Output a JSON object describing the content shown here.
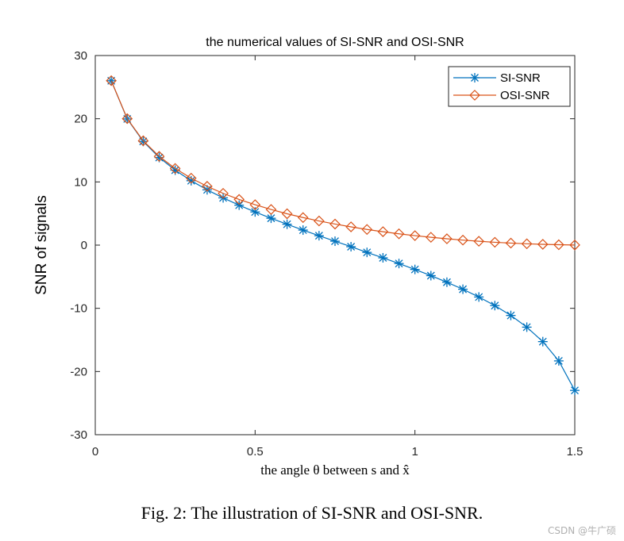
{
  "chart_data": {
    "type": "line",
    "title": "the numerical values of SI-SNR and OSI-SNR",
    "xlabel": "the angle θ between s and x̂",
    "ylabel": "SNR of signals",
    "xlim": [
      0,
      1.5
    ],
    "ylim": [
      -30,
      30
    ],
    "xticks": [
      0,
      0.5,
      1,
      1.5
    ],
    "xtick_labels": [
      "0",
      "0.5",
      "1",
      "1.5"
    ],
    "yticks": [
      -30,
      -20,
      -10,
      0,
      10,
      20,
      30
    ],
    "ytick_labels": [
      "-30",
      "-20",
      "-10",
      "0",
      "10",
      "20",
      "30"
    ],
    "grid": false,
    "legend_position": "top-right",
    "x": [
      0.05,
      0.1,
      0.15,
      0.2,
      0.25,
      0.3,
      0.35,
      0.4,
      0.45,
      0.5,
      0.55,
      0.6,
      0.65,
      0.7,
      0.75,
      0.8,
      0.85,
      0.9,
      0.95,
      1.0,
      1.05,
      1.1,
      1.15,
      1.2,
      1.25,
      1.3,
      1.35,
      1.4,
      1.45,
      1.5
    ],
    "series": [
      {
        "name": "SI-SNR",
        "color": "#0072BD",
        "marker": "asterisk",
        "values": [
          26.01,
          19.97,
          16.41,
          13.86,
          11.86,
          10.19,
          8.75,
          7.48,
          6.32,
          5.25,
          4.25,
          3.3,
          2.38,
          1.49,
          0.62,
          -0.25,
          -1.15,
          -2.01,
          -2.91,
          -3.85,
          -4.83,
          -5.87,
          -6.98,
          -8.21,
          -9.57,
          -11.13,
          -12.98,
          -15.27,
          -18.32,
          -22.99
        ]
      },
      {
        "name": "OSI-SNR",
        "color": "#D95319",
        "marker": "diamond",
        "values": [
          26.02,
          20.01,
          16.51,
          14.04,
          12.13,
          10.59,
          9.3,
          8.19,
          7.23,
          6.39,
          5.64,
          4.96,
          4.36,
          3.82,
          3.33,
          2.89,
          2.48,
          2.12,
          1.79,
          1.5,
          1.24,
          1.0,
          0.79,
          0.61,
          0.45,
          0.32,
          0.21,
          0.13,
          0.06,
          0.02
        ]
      }
    ]
  },
  "caption": "Fig. 2: The illustration of SI-SNR and OSI-SNR.",
  "watermark": "CSDN @牛广硕"
}
